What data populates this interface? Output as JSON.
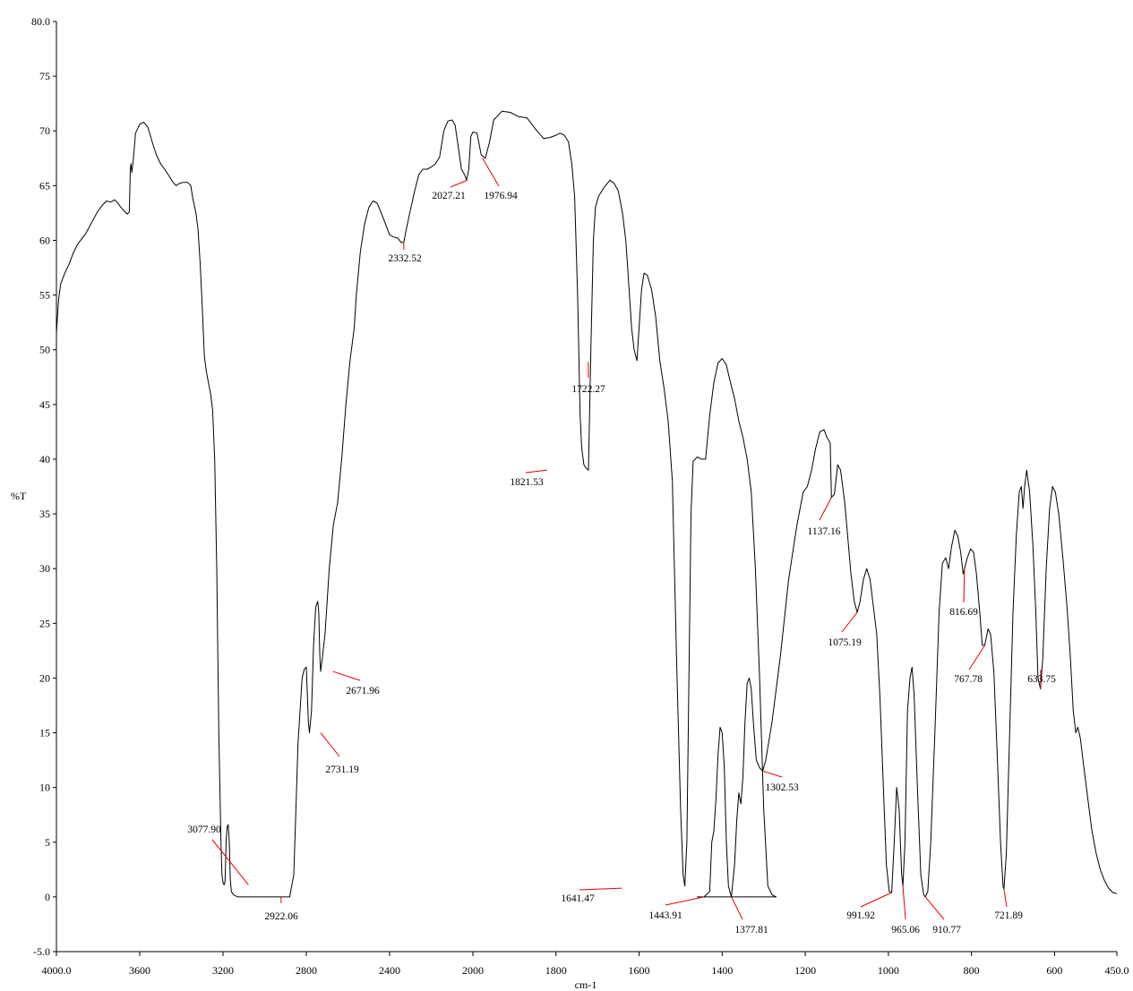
{
  "chart_data": {
    "type": "line",
    "title": "",
    "xlabel": "cm-1",
    "ylabel": "%T",
    "xlim": [
      4000,
      450
    ],
    "ylim": [
      -5,
      80
    ],
    "x_ticks": [
      {
        "value": 4000,
        "label": "4000.0"
      },
      {
        "value": 3600,
        "label": "3600"
      },
      {
        "value": 3200,
        "label": "3200"
      },
      {
        "value": 2800,
        "label": "2800"
      },
      {
        "value": 2400,
        "label": "2400"
      },
      {
        "value": 2000,
        "label": "2000"
      },
      {
        "value": 1800,
        "label": "1800"
      },
      {
        "value": 1600,
        "label": "1600"
      },
      {
        "value": 1400,
        "label": "1400"
      },
      {
        "value": 1200,
        "label": "1200"
      },
      {
        "value": 1000,
        "label": "1000"
      },
      {
        "value": 800,
        "label": "800"
      },
      {
        "value": 600,
        "label": "600"
      },
      {
        "value": 450,
        "label": "450.0"
      }
    ],
    "y_ticks": [
      {
        "value": 80,
        "label": "80.0"
      },
      {
        "value": 75,
        "label": "75"
      },
      {
        "value": 70,
        "label": "70"
      },
      {
        "value": 65,
        "label": "65"
      },
      {
        "value": 60,
        "label": "60"
      },
      {
        "value": 55,
        "label": "55"
      },
      {
        "value": 50,
        "label": "50"
      },
      {
        "value": 45,
        "label": "45"
      },
      {
        "value": 40,
        "label": "40"
      },
      {
        "value": 35,
        "label": "35"
      },
      {
        "value": 30,
        "label": "30"
      },
      {
        "value": 25,
        "label": "25"
      },
      {
        "value": 20,
        "label": "20"
      },
      {
        "value": 15,
        "label": "15"
      },
      {
        "value": 10,
        "label": "10"
      },
      {
        "value": 5,
        "label": "5"
      },
      {
        "value": 0,
        "label": "0"
      },
      {
        "value": -5,
        "label": "-5.0"
      }
    ],
    "series": [
      {
        "points": [
          [
            4000,
            51.5
          ],
          [
            3990,
            54.5
          ],
          [
            3980,
            56.0
          ],
          [
            3960,
            57.0
          ],
          [
            3940,
            57.8
          ],
          [
            3920,
            58.8
          ],
          [
            3900,
            59.6
          ],
          [
            3880,
            60.1
          ],
          [
            3860,
            60.6
          ],
          [
            3840,
            61.3
          ],
          [
            3820,
            62.0
          ],
          [
            3800,
            62.7
          ],
          [
            3780,
            63.2
          ],
          [
            3760,
            63.6
          ],
          [
            3740,
            63.5
          ],
          [
            3720,
            63.7
          ],
          [
            3705,
            63.4
          ],
          [
            3690,
            63.0
          ],
          [
            3675,
            62.7
          ],
          [
            3660,
            62.4
          ],
          [
            3650,
            62.6
          ],
          [
            3645,
            66.5
          ],
          [
            3642,
            67.0
          ],
          [
            3638,
            66.2
          ],
          [
            3630,
            67.5
          ],
          [
            3620,
            69.8
          ],
          [
            3600,
            70.6
          ],
          [
            3580,
            70.8
          ],
          [
            3560,
            70.3
          ],
          [
            3540,
            69.0
          ],
          [
            3520,
            67.8
          ],
          [
            3500,
            67.0
          ],
          [
            3480,
            66.5
          ],
          [
            3460,
            65.9
          ],
          [
            3440,
            65.3
          ],
          [
            3425,
            65.0
          ],
          [
            3410,
            65.2
          ],
          [
            3390,
            65.3
          ],
          [
            3370,
            65.3
          ],
          [
            3355,
            65.0
          ],
          [
            3345,
            63.8
          ],
          [
            3330,
            62.5
          ],
          [
            3320,
            61.0
          ],
          [
            3310,
            58.0
          ],
          [
            3300,
            54.0
          ],
          [
            3290,
            49.5
          ],
          [
            3280,
            48.0
          ],
          [
            3270,
            47.0
          ],
          [
            3260,
            46.0
          ],
          [
            3250,
            44.5
          ],
          [
            3240,
            40.0
          ],
          [
            3230,
            30.0
          ],
          [
            3220,
            15.0
          ],
          [
            3210,
            5.0
          ],
          [
            3205,
            2.0
          ],
          [
            3200,
            1.3
          ],
          [
            3195,
            1.1
          ],
          [
            3190,
            1.4
          ],
          [
            3185,
            5.2
          ],
          [
            3180,
            6.4
          ],
          [
            3175,
            6.6
          ],
          [
            3170,
            5.0
          ],
          [
            3165,
            1.6
          ],
          [
            3160,
            0.5
          ],
          [
            3150,
            0.2
          ],
          [
            3130,
            0.0
          ],
          [
            3100,
            0.0
          ],
          [
            3000,
            0.0
          ],
          [
            2940,
            0.0
          ],
          [
            2922,
            0.0
          ],
          [
            2900,
            0.0
          ],
          [
            2880,
            0.0
          ],
          [
            2860,
            2.0
          ],
          [
            2850,
            8.0
          ],
          [
            2840,
            14.0
          ],
          [
            2830,
            17.0
          ],
          [
            2820,
            20.0
          ],
          [
            2810,
            20.8
          ],
          [
            2800,
            21.0
          ],
          [
            2790,
            16.0
          ],
          [
            2785,
            15.0
          ],
          [
            2775,
            17.0
          ],
          [
            2765,
            23.0
          ],
          [
            2755,
            26.5
          ],
          [
            2745,
            27.0
          ],
          [
            2740,
            26.0
          ],
          [
            2735,
            22.0
          ],
          [
            2731,
            20.6
          ],
          [
            2725,
            21.5
          ],
          [
            2710,
            24.0
          ],
          [
            2690,
            30.0
          ],
          [
            2670,
            34.0
          ],
          [
            2650,
            36.0
          ],
          [
            2630,
            40.0
          ],
          [
            2610,
            45.0
          ],
          [
            2590,
            49.0
          ],
          [
            2570,
            52.0
          ],
          [
            2560,
            55.0
          ],
          [
            2540,
            59.0
          ],
          [
            2520,
            61.5
          ],
          [
            2500,
            63.0
          ],
          [
            2480,
            63.6
          ],
          [
            2460,
            63.4
          ],
          [
            2440,
            62.5
          ],
          [
            2420,
            61.5
          ],
          [
            2400,
            60.5
          ],
          [
            2380,
            60.3
          ],
          [
            2360,
            60.2
          ],
          [
            2345,
            59.8
          ],
          [
            2332,
            59.8
          ],
          [
            2320,
            61.0
          ],
          [
            2300,
            62.8
          ],
          [
            2280,
            64.5
          ],
          [
            2260,
            66.0
          ],
          [
            2240,
            66.5
          ],
          [
            2220,
            66.5
          ],
          [
            2200,
            66.7
          ],
          [
            2180,
            67.0
          ],
          [
            2160,
            67.6
          ],
          [
            2140,
            70.0
          ],
          [
            2120,
            70.9
          ],
          [
            2100,
            71.0
          ],
          [
            2085,
            70.5
          ],
          [
            2070,
            68.5
          ],
          [
            2055,
            66.5
          ],
          [
            2040,
            66.0
          ],
          [
            2030,
            65.5
          ],
          [
            2020,
            66.5
          ],
          [
            2010,
            69.5
          ],
          [
            2000,
            69.9
          ],
          [
            1990,
            69.8
          ],
          [
            1980,
            67.8
          ],
          [
            1970,
            67.5
          ],
          [
            1960,
            69.0
          ],
          [
            1950,
            71.0
          ],
          [
            1930,
            71.8
          ],
          [
            1910,
            71.7
          ],
          [
            1890,
            71.3
          ],
          [
            1870,
            71.2
          ],
          [
            1850,
            70.2
          ],
          [
            1830,
            69.3
          ],
          [
            1815,
            69.4
          ],
          [
            1800,
            69.6
          ],
          [
            1790,
            69.8
          ],
          [
            1780,
            69.6
          ],
          [
            1770,
            69.0
          ],
          [
            1762,
            67.0
          ],
          [
            1755,
            64.0
          ],
          [
            1748,
            55.0
          ],
          [
            1742,
            44.0
          ],
          [
            1738,
            41.0
          ],
          [
            1733,
            39.5
          ],
          [
            1728,
            39.2
          ],
          [
            1722,
            39.0
          ],
          [
            1716,
            50.0
          ],
          [
            1710,
            60.0
          ],
          [
            1705,
            63.0
          ],
          [
            1698,
            64.0
          ],
          [
            1685,
            64.8
          ],
          [
            1670,
            65.5
          ],
          [
            1660,
            65.2
          ],
          [
            1650,
            64.5
          ],
          [
            1640,
            62.5
          ],
          [
            1632,
            60.0
          ],
          [
            1625,
            56.0
          ],
          [
            1618,
            52.0
          ],
          [
            1612,
            50.0
          ],
          [
            1605,
            49.0
          ],
          [
            1600,
            52.0
          ],
          [
            1594,
            55.5
          ],
          [
            1588,
            57.0
          ],
          [
            1580,
            56.8
          ],
          [
            1570,
            55.5
          ],
          [
            1560,
            53.0
          ],
          [
            1550,
            49.0
          ],
          [
            1540,
            46.5
          ],
          [
            1530,
            43.5
          ],
          [
            1520,
            38.0
          ],
          [
            1510,
            22.0
          ],
          [
            1500,
            8.0
          ],
          [
            1494,
            2.0
          ],
          [
            1490,
            1.0
          ],
          [
            1485,
            5.0
          ],
          [
            1480,
            20.0
          ],
          [
            1475,
            35.0
          ],
          [
            1470,
            39.8
          ],
          [
            1460,
            40.2
          ],
          [
            1450,
            40.0
          ],
          [
            1440,
            40.0
          ],
          [
            1430,
            44.0
          ],
          [
            1420,
            47.0
          ],
          [
            1410,
            48.8
          ],
          [
            1400,
            49.2
          ],
          [
            1390,
            48.6
          ],
          [
            1380,
            47.0
          ],
          [
            1370,
            45.5
          ],
          [
            1360,
            43.5
          ],
          [
            1350,
            42.0
          ],
          [
            1340,
            40.0
          ],
          [
            1330,
            37.0
          ],
          [
            1320,
            30.0
          ],
          [
            1310,
            20.0
          ],
          [
            1300,
            8.0
          ],
          [
            1290,
            1.0
          ],
          [
            1280,
            0.2
          ],
          [
            1270,
            0.0
          ],
          [
            1460,
            0.0
          ]
        ]
      }
    ],
    "peak_labels": [
      {
        "x": 3077.9,
        "y": 1.1,
        "label": "3077.90"
      },
      {
        "x": 2922.06,
        "y": 0.0,
        "label": "2922.06"
      },
      {
        "x": 2731.19,
        "y": 15.0,
        "label": "2731.19"
      },
      {
        "x": 2671.96,
        "y": 20.6,
        "label": "2671.96"
      },
      {
        "x": 2332.52,
        "y": 59.8,
        "label": "2332.52"
      },
      {
        "x": 2027.21,
        "y": 65.5,
        "label": "2027.21"
      },
      {
        "x": 1976.94,
        "y": 67.5,
        "label": "1976.94"
      },
      {
        "x": 1821.53,
        "y": 39.0,
        "label": "1821.53"
      },
      {
        "x": 1722.27,
        "y": 48.9,
        "label": "1722.27"
      },
      {
        "x": 1641.47,
        "y": 0.8,
        "label": "1641.47"
      },
      {
        "x": 1443.91,
        "y": 0.0,
        "label": "1443.91"
      },
      {
        "x": 1377.81,
        "y": 0.0,
        "label": "1377.81"
      },
      {
        "x": 1302.53,
        "y": 11.5,
        "label": "1302.53"
      },
      {
        "x": 1137.16,
        "y": 36.5,
        "label": "1137.16"
      },
      {
        "x": 1075.19,
        "y": 26.0,
        "label": "1075.19"
      },
      {
        "x": 991.92,
        "y": 0.4,
        "label": "991.92"
      },
      {
        "x": 965.06,
        "y": 1.0,
        "label": "965.06"
      },
      {
        "x": 910.77,
        "y": 0.0,
        "label": "910.77"
      },
      {
        "x": 816.69,
        "y": 30.0,
        "label": "816.69"
      },
      {
        "x": 767.78,
        "y": 23.0,
        "label": "767.78"
      },
      {
        "x": 721.89,
        "y": 0.7,
        "label": "721.89"
      },
      {
        "x": 633.75,
        "y": 19.0,
        "label": "633.75"
      }
    ]
  }
}
